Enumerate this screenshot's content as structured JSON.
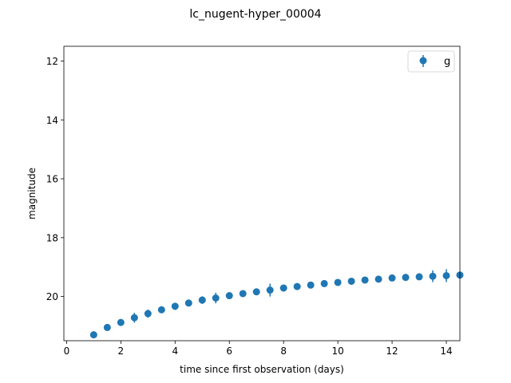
{
  "chart_data": {
    "type": "scatter",
    "title": "lc_nugent-hyper_00004",
    "xlabel": "time since first observation (days)",
    "ylabel": "magnitude",
    "xlim": [
      -0.1,
      14.5
    ],
    "ylim": [
      21.5,
      11.5
    ],
    "y_inverted": true,
    "x_ticks": [
      "0",
      "2",
      "4",
      "6",
      "8",
      "10",
      "12",
      "14"
    ],
    "y_ticks": [
      "12",
      "14",
      "16",
      "18",
      "20"
    ],
    "grid": false,
    "legend_position": "top-right",
    "series": [
      {
        "name": "g",
        "color": "#1f77b4",
        "marker": "circle",
        "x": [
          1.0,
          1.5,
          2.0,
          2.5,
          3.0,
          3.5,
          4.0,
          4.5,
          5.0,
          5.5,
          6.0,
          6.5,
          7.0,
          7.5,
          8.0,
          8.5,
          9.0,
          9.5,
          10.0,
          10.5,
          11.0,
          11.5,
          12.0,
          12.5,
          13.0,
          13.5,
          14.0,
          14.5
        ],
        "y": [
          21.3,
          21.05,
          20.88,
          20.72,
          20.58,
          20.45,
          20.33,
          20.22,
          20.12,
          20.05,
          19.97,
          19.9,
          19.84,
          19.78,
          19.71,
          19.66,
          19.61,
          19.56,
          19.52,
          19.48,
          19.44,
          19.41,
          19.37,
          19.35,
          19.33,
          19.31,
          19.29,
          19.27
        ],
        "yerr": [
          0.12,
          0.1,
          0.08,
          0.17,
          0.14,
          0.06,
          0.12,
          0.09,
          0.13,
          0.18,
          0.07,
          0.05,
          0.1,
          0.22,
          0.06,
          0.05,
          0.05,
          0.05,
          0.05,
          0.06,
          0.1,
          0.06,
          0.06,
          0.06,
          0.06,
          0.2,
          0.22,
          0.06
        ]
      }
    ]
  }
}
